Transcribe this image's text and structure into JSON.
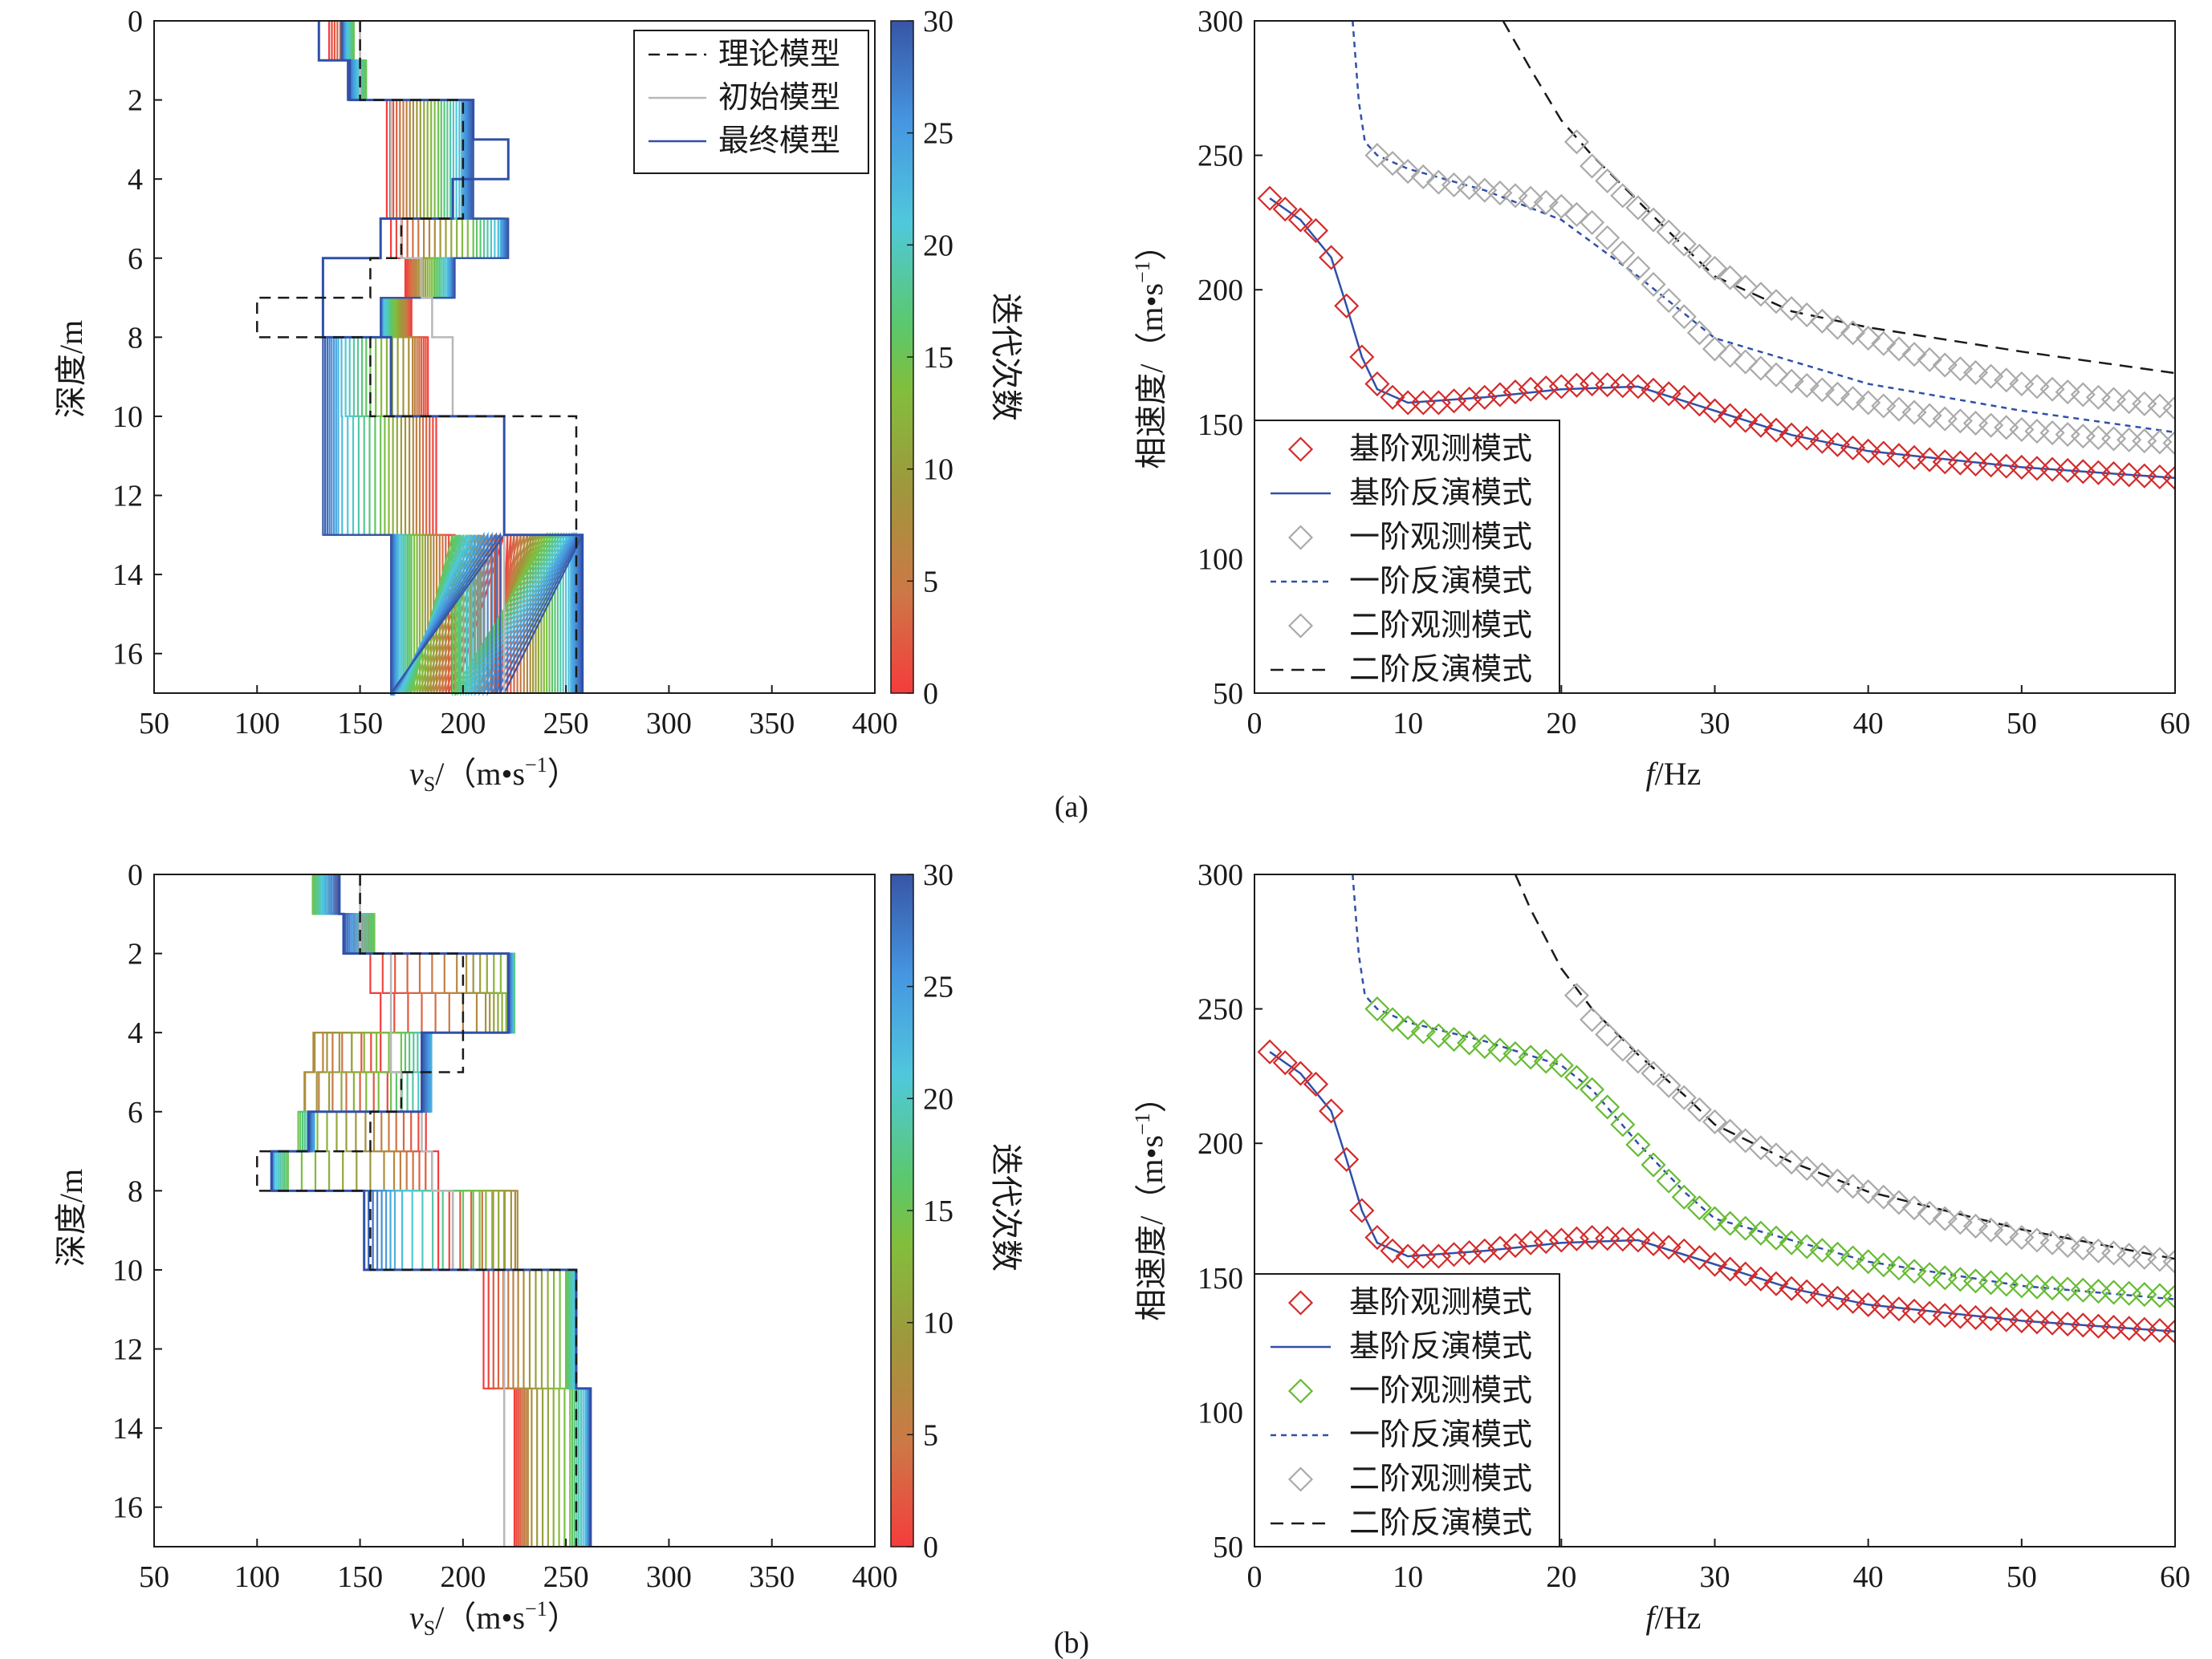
{
  "colors": {
    "theory": "#1a1a1a",
    "initial": "#b8b8b8",
    "final": "#3050a8",
    "fundamental_obs": "#d42a2a",
    "fundamental_inv": "#3050a8",
    "first_obs_a": "#aaaaaa",
    "first_obs_b": "#66bb33",
    "first_inv": "#3050a8",
    "second_obs": "#aaaaaa",
    "second_inv": "#1a1a1a"
  },
  "panels": [
    {
      "label": "(a)",
      "profile": {
        "xlabel_main": "v",
        "xlabel_sub": "S",
        "xlabel_unit": "/（m•s",
        "xlabel_sup": "−1",
        "xlabel_close": "）",
        "ylabel": "深度/m",
        "legend": [
          "理论模型",
          "初始模型",
          "最终模型"
        ],
        "colorbar_label": "迭代次数",
        "colorbar_ticks": [
          "0",
          "5",
          "10",
          "15",
          "20",
          "25",
          "30"
        ]
      },
      "dispersion": {
        "xlabel_italic": "f",
        "xlabel_rest": "/Hz",
        "ylabel": "相速度/（m•s",
        "ylabel_sup": "−1",
        "ylabel_close": "）",
        "legend": [
          "基阶观测模式",
          "基阶反演模式",
          "一阶观测模式",
          "一阶反演模式",
          "二阶观测模式",
          "二阶反演模式"
        ]
      }
    },
    {
      "label": "(b)",
      "profile": {
        "xlabel_main": "v",
        "xlabel_sub": "S",
        "xlabel_unit": "/（m•s",
        "xlabel_sup": "−1",
        "xlabel_close": "）",
        "ylabel": "深度/m",
        "legend": [],
        "colorbar_label": "迭代次数",
        "colorbar_ticks": [
          "0",
          "5",
          "10",
          "15",
          "20",
          "25",
          "30"
        ]
      },
      "dispersion": {
        "xlabel_italic": "f",
        "xlabel_rest": "/Hz",
        "ylabel": "相速度/（m•s",
        "ylabel_sup": "−1",
        "ylabel_close": "）",
        "legend": [
          "基阶观测模式",
          "基阶反演模式",
          "一阶观测模式",
          "一阶反演模式",
          "二阶观测模式",
          "二阶反演模式"
        ]
      }
    }
  ],
  "chart_data": [
    {
      "panel": "(a) left",
      "type": "line",
      "xlim": [
        50,
        400
      ],
      "ylim": [
        17,
        0
      ],
      "xticks": [
        50,
        100,
        150,
        200,
        250,
        300,
        350,
        400
      ],
      "yticks": [
        0,
        2,
        4,
        6,
        8,
        10,
        12,
        14,
        16
      ],
      "legend_position": "top-right",
      "iterations": 30,
      "layer_depths": [
        0,
        1,
        2,
        5,
        6,
        7,
        8,
        10,
        13,
        17
      ],
      "theory": {
        "depths": [
          0,
          1,
          2,
          5,
          6,
          7,
          8,
          10,
          13,
          17
        ],
        "vs": [
          150,
          150,
          200,
          170,
          155,
          100,
          155,
          255,
          255
        ]
      },
      "initial": {
        "depths": [
          0,
          1,
          2,
          5,
          6,
          7,
          8,
          10,
          13,
          17
        ],
        "vs": [
          150,
          150,
          165,
          170,
          180,
          185,
          195,
          220,
          220
        ]
      },
      "final": {
        "depths": [
          0,
          1,
          2,
          3,
          4,
          5,
          6,
          8,
          10,
          13,
          17
        ],
        "vs": [
          130,
          145,
          205,
          222,
          195,
          160,
          132,
          165,
          220,
          258,
          258
        ]
      },
      "iteration_paths": [
        [
          135,
          145,
          147,
          143,
          141
        ],
        [
          152,
          150,
          153,
          148,
          144
        ],
        [
          163,
          175,
          188,
          199,
          205
        ],
        [
          165,
          185,
          205,
          218,
          222
        ],
        [
          172,
          178,
          186,
          193,
          196
        ],
        [
          175,
          171,
          166,
          161,
          160
        ],
        [
          183,
          175,
          155,
          140,
          132
        ],
        [
          187,
          175,
          160,
          140,
          132
        ],
        [
          196,
          185,
          175,
          168,
          165
        ],
        [
          220,
          208,
          195,
          205,
          220
        ],
        [
          220,
          232,
          242,
          252,
          258
        ],
        [
          220,
          232,
          242,
          252,
          258
        ]
      ]
    },
    {
      "panel": "(a) right",
      "type": "scatter",
      "xlabel": "f/Hz",
      "ylabel": "相速度/（m•s−1）",
      "xlim": [
        0,
        60
      ],
      "ylim": [
        50,
        300
      ],
      "xticks": [
        0,
        10,
        20,
        30,
        40,
        50,
        60
      ],
      "yticks": [
        50,
        100,
        150,
        200,
        250,
        300
      ],
      "legend_position": "bottom-left",
      "series": [
        {
          "name": "基阶观测模式",
          "kind": "marker",
          "x": [
            1,
            2,
            3,
            4,
            5,
            6,
            7,
            8,
            9,
            10,
            12,
            15,
            18,
            20,
            22,
            25,
            28,
            30,
            35,
            40,
            45,
            50,
            55,
            60
          ],
          "y": [
            234,
            230,
            226,
            222,
            212,
            194,
            175,
            165,
            160,
            158,
            158,
            160,
            163,
            164,
            165,
            164,
            160,
            155,
            146,
            140,
            136,
            134,
            132,
            130
          ]
        },
        {
          "name": "基阶反演模式",
          "kind": "line",
          "x": [
            1,
            3,
            5,
            6,
            7,
            8,
            10,
            15,
            20,
            25,
            30,
            35,
            40,
            50,
            60
          ],
          "y": [
            234,
            226,
            212,
            194,
            175,
            163,
            158,
            160,
            163,
            164,
            155,
            146,
            140,
            134,
            130
          ]
        },
        {
          "name": "一阶观测模式",
          "kind": "marker",
          "x": [
            8,
            9,
            10,
            12,
            15,
            18,
            20,
            22,
            25,
            28,
            30,
            35,
            40,
            45,
            50,
            55,
            60
          ],
          "y": [
            250,
            247,
            244,
            240,
            237,
            234,
            231,
            225,
            208,
            190,
            178,
            166,
            158,
            152,
            148,
            145,
            143
          ]
        },
        {
          "name": "一阶反演模式",
          "kind": "dashed",
          "x": [
            6.4,
            6.8,
            7.2,
            8,
            10,
            15,
            20,
            25,
            30,
            40,
            50,
            60
          ],
          "y": [
            300,
            270,
            255,
            250,
            245,
            237,
            226,
            205,
            182,
            165,
            155,
            147
          ]
        },
        {
          "name": "二阶观测模式",
          "kind": "marker",
          "x": [
            21,
            22,
            24,
            26,
            28,
            30,
            32,
            35,
            38,
            40,
            45,
            50,
            55,
            60
          ],
          "y": [
            255,
            246,
            235,
            226,
            217,
            208,
            201,
            193,
            186,
            182,
            172,
            165,
            160,
            156
          ]
        },
        {
          "name": "二阶反演模式",
          "kind": "dashed",
          "x": [
            16.2,
            18,
            20,
            22,
            25,
            28,
            30,
            35,
            40,
            50,
            60
          ],
          "y": [
            300,
            282,
            263,
            250,
            233,
            216,
            205,
            192,
            186,
            177,
            169
          ]
        }
      ]
    },
    {
      "panel": "(b) left",
      "type": "line",
      "xlim": [
        50,
        400
      ],
      "ylim": [
        17,
        0
      ],
      "xticks": [
        50,
        100,
        150,
        200,
        250,
        300,
        350,
        400
      ],
      "yticks": [
        0,
        2,
        4,
        6,
        8,
        10,
        12,
        14,
        16
      ],
      "iterations": 30,
      "layer_depths": [
        0,
        1,
        2,
        3,
        4,
        5,
        6,
        7,
        8,
        10,
        13,
        17
      ],
      "theory": {
        "depths": [
          0,
          1,
          2,
          5,
          6,
          7,
          8,
          10,
          13,
          17
        ],
        "vs": [
          150,
          150,
          200,
          170,
          155,
          100,
          155,
          255,
          255
        ]
      },
      "initial": {
        "depths": [
          0,
          1,
          2,
          5,
          6,
          7,
          8,
          10,
          13,
          17
        ],
        "vs": [
          150,
          150,
          165,
          170,
          180,
          185,
          195,
          220,
          220
        ]
      },
      "final": {
        "depths": [
          0,
          1,
          2,
          3,
          4,
          5,
          6,
          7,
          8,
          10,
          13,
          17
        ],
        "vs": [
          140,
          142,
          222,
          222,
          180,
          180,
          125,
          107,
          152,
          255,
          262,
          262
        ]
      },
      "iteration_paths": [
        [
          140,
          130,
          127,
          133,
          140
        ],
        [
          147,
          155,
          157,
          149,
          142
        ],
        [
          155,
          200,
          225,
          224,
          222
        ],
        [
          160,
          210,
          225,
          224,
          222
        ],
        [
          160,
          125,
          170,
          185,
          180
        ],
        [
          170,
          120,
          165,
          185,
          180
        ],
        [
          182,
          155,
          120,
          128,
          125
        ],
        [
          188,
          165,
          115,
          108,
          107
        ],
        [
          188,
          228,
          205,
          168,
          152
        ],
        [
          210,
          228,
          250,
          255,
          255
        ],
        [
          225,
          232,
          252,
          260,
          262
        ],
        [
          225,
          232,
          252,
          260,
          262
        ]
      ]
    },
    {
      "panel": "(b) right",
      "type": "scatter",
      "xlabel": "f/Hz",
      "ylabel": "相速度/（m•s−1）",
      "xlim": [
        0,
        60
      ],
      "ylim": [
        50,
        300
      ],
      "xticks": [
        0,
        10,
        20,
        30,
        40,
        50,
        60
      ],
      "yticks": [
        50,
        100,
        150,
        200,
        250,
        300
      ],
      "legend_position": "bottom-left",
      "series": [
        {
          "name": "基阶观测模式",
          "kind": "marker",
          "x": [
            1,
            2,
            3,
            4,
            5,
            6,
            7,
            8,
            9,
            10,
            12,
            15,
            18,
            20,
            22,
            25,
            28,
            30,
            35,
            40,
            45,
            50,
            55,
            60
          ],
          "y": [
            234,
            230,
            226,
            222,
            212,
            194,
            175,
            165,
            160,
            158,
            158,
            160,
            163,
            164,
            165,
            164,
            160,
            155,
            146,
            140,
            136,
            134,
            132,
            130
          ]
        },
        {
          "name": "基阶反演模式",
          "kind": "line",
          "x": [
            1,
            3,
            5,
            6,
            7,
            8,
            10,
            15,
            20,
            25,
            30,
            35,
            40,
            50,
            60
          ],
          "y": [
            234,
            226,
            212,
            194,
            175,
            163,
            158,
            160,
            163,
            164,
            155,
            146,
            140,
            134,
            130
          ]
        },
        {
          "name": "一阶观测模式",
          "kind": "marker",
          "x": [
            8,
            9,
            10,
            12,
            15,
            18,
            20,
            22,
            24,
            26,
            28,
            30,
            35,
            40,
            45,
            50,
            55,
            60
          ],
          "y": [
            250,
            246,
            243,
            240,
            236,
            232,
            229,
            220,
            207,
            192,
            180,
            172,
            163,
            156,
            150,
            147,
            145,
            143
          ]
        },
        {
          "name": "一阶反演模式",
          "kind": "dashed",
          "x": [
            6.4,
            6.8,
            7.2,
            8,
            10,
            15,
            20,
            22,
            25,
            28,
            30,
            40,
            50,
            60
          ],
          "y": [
            300,
            270,
            255,
            250,
            245,
            238,
            229,
            220,
            200,
            182,
            172,
            156,
            147,
            142
          ]
        },
        {
          "name": "二阶观测模式",
          "kind": "marker",
          "x": [
            21,
            22,
            24,
            26,
            28,
            30,
            32,
            35,
            38,
            40,
            45,
            50,
            55,
            60
          ],
          "y": [
            255,
            246,
            235,
            226,
            217,
            208,
            201,
            193,
            186,
            182,
            172,
            165,
            160,
            156
          ]
        },
        {
          "name": "二阶反演模式",
          "kind": "dashed",
          "x": [
            17,
            18,
            20,
            22,
            25,
            28,
            30,
            35,
            40,
            50,
            60
          ],
          "y": [
            300,
            287,
            265,
            250,
            233,
            218,
            207,
            193,
            182,
            168,
            157
          ]
        }
      ]
    }
  ]
}
